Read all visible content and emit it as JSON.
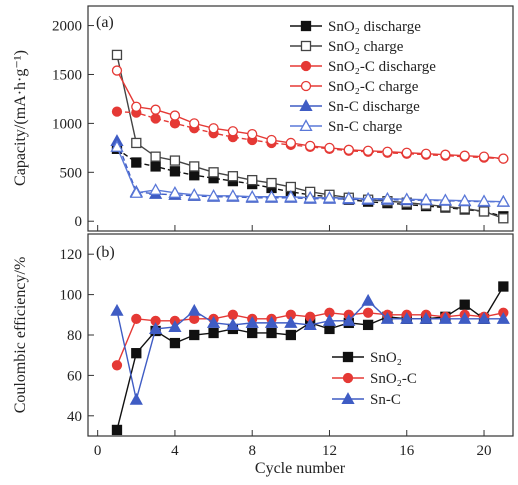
{
  "chart_data": [
    {
      "type": "line",
      "panel_label": "(a)",
      "xlabel": "",
      "ylabel": "Capacity/(mA·h·g⁻¹)",
      "xlim": [
        -0.5,
        21.5
      ],
      "ylim": [
        -100,
        2200
      ],
      "x_ticks": [
        0,
        4,
        8,
        12,
        16,
        20
      ],
      "y_ticks": [
        0,
        500,
        1000,
        1500,
        2000
      ],
      "y_tick_labels": [
        "0",
        "500",
        "1000",
        "1500",
        "2000"
      ],
      "legend_position": "top-right",
      "x": [
        1,
        2,
        3,
        4,
        5,
        6,
        7,
        8,
        9,
        10,
        11,
        12,
        13,
        14,
        15,
        16,
        17,
        18,
        19,
        20,
        21
      ],
      "series": [
        {
          "name": "SnO₂ discharge",
          "color": "#111111",
          "marker": "square",
          "filled": true,
          "values": [
            740,
            600,
            560,
            510,
            470,
            440,
            410,
            380,
            340,
            300,
            270,
            250,
            220,
            200,
            185,
            170,
            155,
            140,
            120,
            100,
            50
          ]
        },
        {
          "name": "SnO₂ charge",
          "color": "#444444",
          "marker": "square",
          "filled": false,
          "values": [
            1700,
            800,
            660,
            620,
            560,
            500,
            460,
            420,
            390,
            350,
            300,
            270,
            240,
            220,
            205,
            190,
            170,
            150,
            130,
            100,
            30
          ]
        },
        {
          "name": "SnO₂-C discharge",
          "color": "#e53935",
          "marker": "circle",
          "filled": true,
          "values": [
            1120,
            1110,
            1050,
            1000,
            950,
            900,
            860,
            830,
            800,
            780,
            760,
            740,
            720,
            710,
            700,
            690,
            680,
            670,
            660,
            650,
            640
          ]
        },
        {
          "name": "SnO₂-C charge",
          "color": "#e53935",
          "marker": "circle",
          "filled": false,
          "values": [
            1540,
            1170,
            1140,
            1080,
            1000,
            950,
            920,
            890,
            830,
            800,
            770,
            750,
            730,
            720,
            710,
            700,
            690,
            680,
            670,
            660,
            640
          ]
        },
        {
          "name": "Sn-C discharge",
          "color": "#3f5cc4",
          "marker": "triangle",
          "filled": true,
          "values": [
            820,
            300,
            280,
            270,
            260,
            250,
            250,
            240,
            240,
            240,
            230,
            230,
            225,
            220,
            220,
            215,
            215,
            210,
            205,
            200,
            200
          ]
        },
        {
          "name": "Sn-C charge",
          "color": "#5a78d8",
          "marker": "triangle",
          "filled": false,
          "values": [
            760,
            290,
            320,
            290,
            270,
            260,
            260,
            250,
            250,
            250,
            240,
            240,
            235,
            230,
            230,
            225,
            220,
            215,
            210,
            205,
            200
          ]
        }
      ]
    },
    {
      "type": "line",
      "panel_label": "(b)",
      "xlabel": "Cycle number",
      "ylabel": "Coulombic efficiency/%",
      "xlim": [
        -0.5,
        21.5
      ],
      "ylim": [
        30,
        130
      ],
      "x_ticks": [
        0,
        4,
        8,
        12,
        16,
        20
      ],
      "y_ticks": [
        40,
        60,
        80,
        100,
        120
      ],
      "legend_position": "bottom-right",
      "x": [
        1,
        2,
        3,
        4,
        5,
        6,
        7,
        8,
        9,
        10,
        11,
        12,
        13,
        14,
        15,
        16,
        17,
        18,
        19,
        20,
        21
      ],
      "series": [
        {
          "name": "SnO₂",
          "color": "#111111",
          "marker": "square",
          "filled": true,
          "values": [
            33,
            71,
            82,
            76,
            80,
            81,
            83,
            81,
            81,
            80,
            86,
            83,
            86,
            85,
            89,
            88,
            88,
            89,
            95,
            88,
            104
          ]
        },
        {
          "name": "SnO₂-C",
          "color": "#e53935",
          "marker": "circle",
          "filled": true,
          "values": [
            65,
            88,
            87,
            87,
            88,
            88,
            90,
            88,
            88,
            90,
            89,
            91,
            90,
            91,
            90,
            90,
            90,
            89,
            90,
            89,
            91
          ]
        },
        {
          "name": "Sn-C",
          "color": "#3f5cc4",
          "marker": "triangle",
          "filled": true,
          "values": [
            92,
            48,
            83,
            84,
            92,
            86,
            85,
            86,
            86,
            86,
            85,
            87,
            87,
            97,
            88,
            88,
            88,
            88,
            88,
            88,
            88
          ]
        }
      ]
    }
  ]
}
